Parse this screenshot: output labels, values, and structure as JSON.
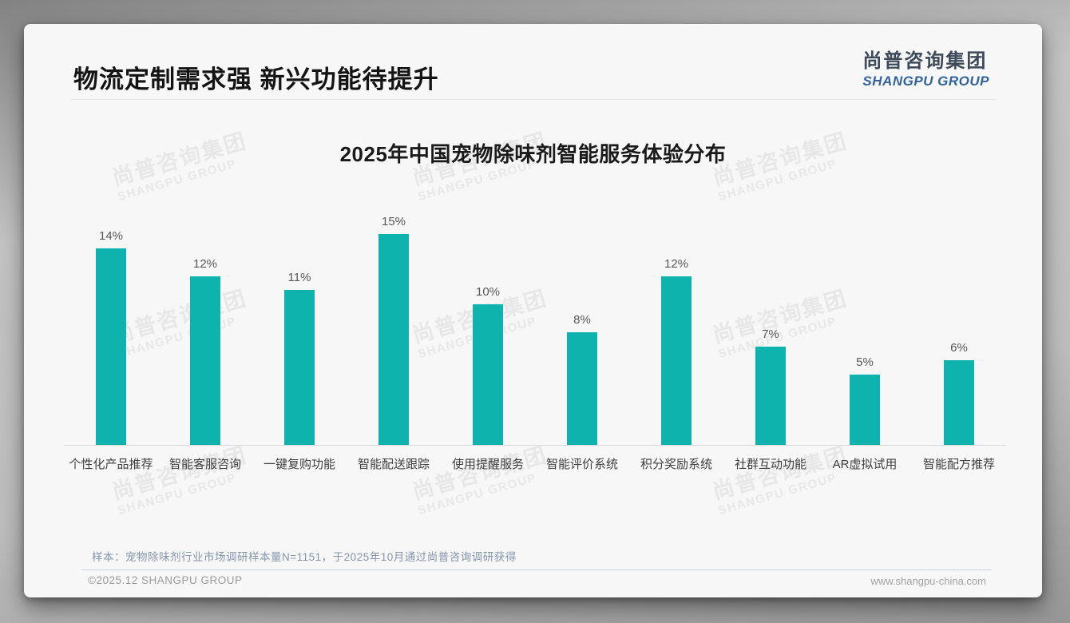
{
  "slide": {
    "title": "物流定制需求强 新兴功能待提升",
    "logo": {
      "name_cn": "尚普咨询集团",
      "name_en": "SHANGPU GROUP"
    },
    "watermark": {
      "line1": "尚普咨询集团",
      "line2": "SHANGPU GROUP"
    },
    "note": "样本：宠物除味剂行业市场调研样本量N=1151，于2025年10月通过尚普咨询调研获得",
    "footer": {
      "left": "©2025.12 SHANGPU GROUP",
      "right": "www.shangpu-china.com"
    }
  },
  "chart_data": {
    "type": "bar",
    "title": "2025年中国宠物除味剂智能服务体验分布",
    "categories": [
      "个性化产品推荐",
      "智能客服咨询",
      "一键复购功能",
      "智能配送跟踪",
      "使用提醒服务",
      "智能评价系统",
      "积分奖励系统",
      "社群互动功能",
      "AR虚拟试用",
      "智能配方推荐"
    ],
    "values": [
      14,
      12,
      11,
      15,
      10,
      8,
      12,
      7,
      5,
      6
    ],
    "data_labels": [
      "14%",
      "12%",
      "11%",
      "15%",
      "10%",
      "8%",
      "12%",
      "7%",
      "5%",
      "6%"
    ],
    "unit": "%",
    "bar_color": "#0db3ac",
    "ylim": [
      0,
      16
    ],
    "grid": false,
    "legend": false,
    "xlabel": "",
    "ylabel": ""
  }
}
